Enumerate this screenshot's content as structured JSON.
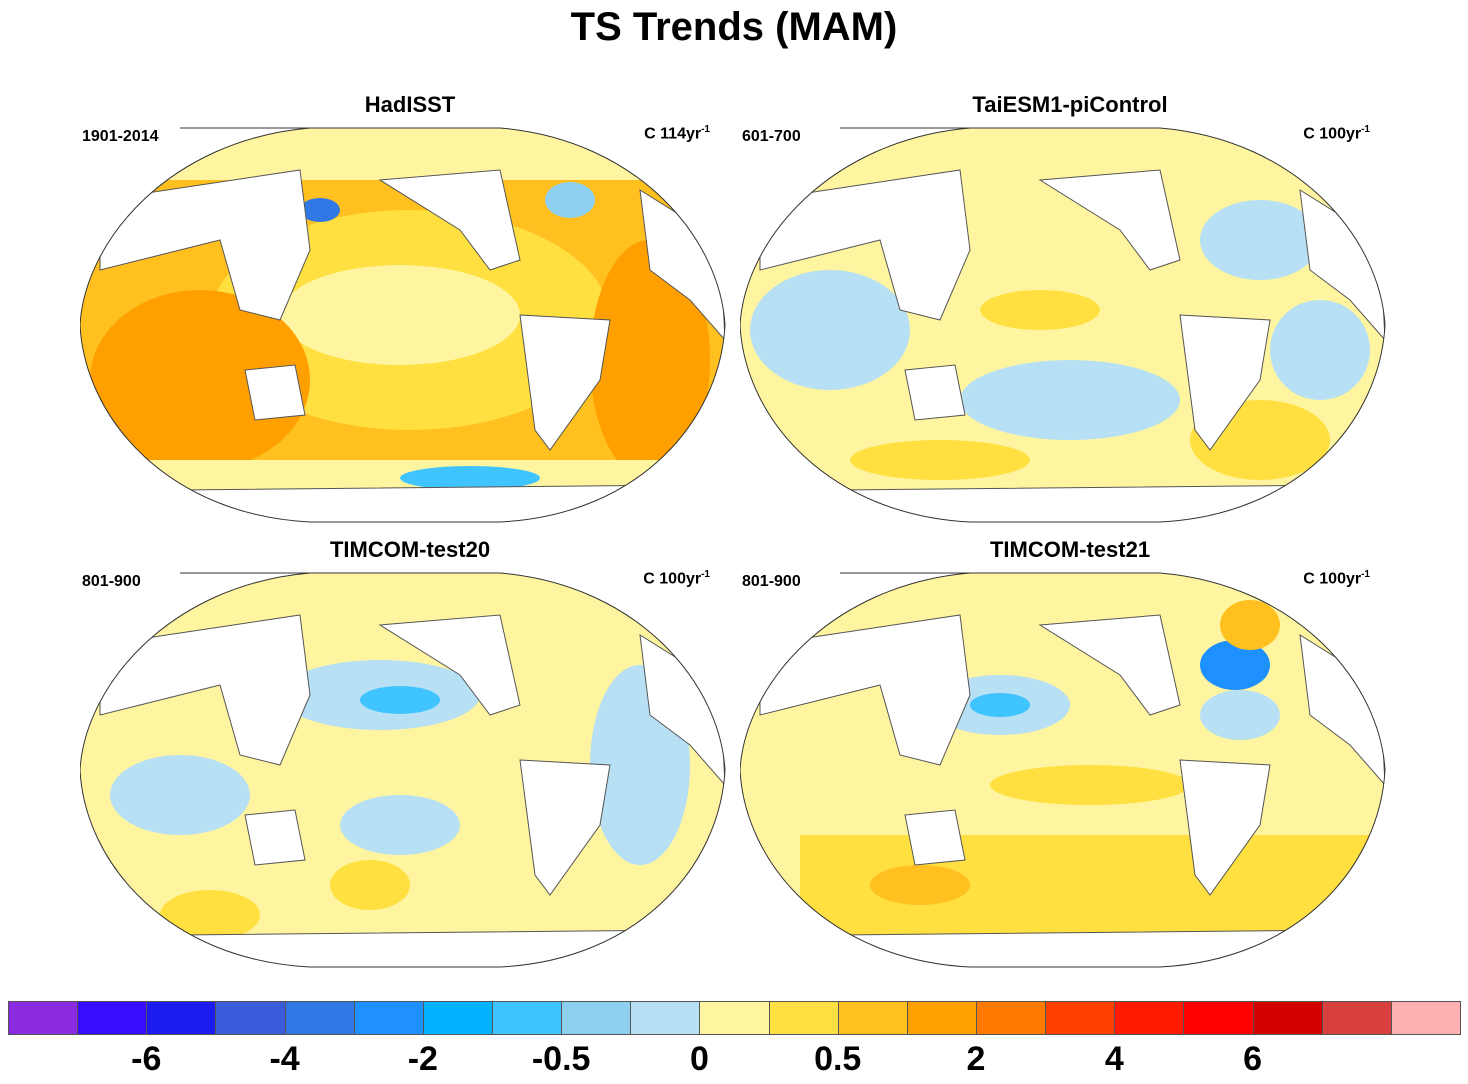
{
  "title": "TS Trends (MAM)",
  "panels": [
    {
      "title": "HadISST",
      "period": "1901-2014",
      "unit": "C 114yr",
      "unit_exp": "-1",
      "style": "warm"
    },
    {
      "title": "TaiESM1-piControl",
      "period": "601-700",
      "unit": "C 100yr",
      "unit_exp": "-1",
      "style": "mixed"
    },
    {
      "title": "TIMCOM-test20",
      "period": "801-900",
      "unit": "C 100yr",
      "unit_exp": "-1",
      "style": "mixed2"
    },
    {
      "title": "TIMCOM-test21",
      "period": "801-900",
      "unit": "C 100yr",
      "unit_exp": "-1",
      "style": "mixed3"
    }
  ],
  "colorbar": {
    "colors": [
      "#8a2be2",
      "#3a0cff",
      "#1c1cf0",
      "#3b5bdb",
      "#2f78e6",
      "#1e90ff",
      "#00b2ff",
      "#40c4ff",
      "#8ecff0",
      "#b7e0f5",
      "#fff5a0",
      "#ffe040",
      "#ffc020",
      "#ffa000",
      "#ff7a00",
      "#ff4000",
      "#ff1a00",
      "#ff0000",
      "#d20000",
      "#d84040",
      "#ffb0b0"
    ],
    "labels": [
      "-6",
      "-4",
      "-2",
      "-0.5",
      "0",
      "0.5",
      "2",
      "4",
      "6"
    ],
    "label_positions": [
      2,
      4,
      6,
      8,
      10,
      12,
      14,
      16,
      18
    ]
  }
}
